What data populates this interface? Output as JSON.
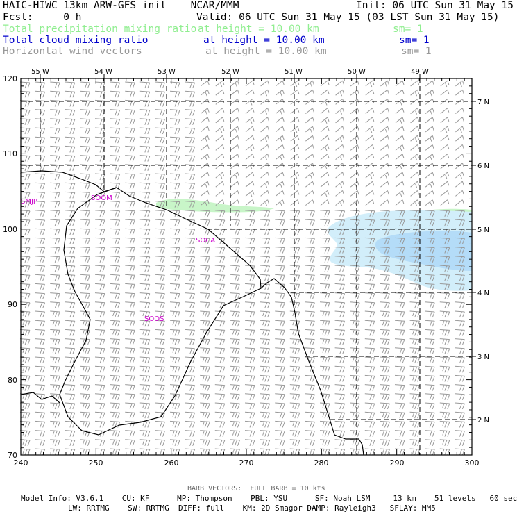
{
  "header": {
    "left_title": "HAIC-HIWC 13km ARW-GFS init    NCAR/MMM",
    "init": "Init: 06 UTC Sun 31 May 15",
    "fcst": "Fcst:     0 h",
    "valid": "Valid: 06 UTC Sun 31 May 15 (03 LST Sun 31 May 15)"
  },
  "fields": [
    {
      "name": "Total precipitation mixing ratio",
      "level": "at height = 10.00 km",
      "sm": "sm= 1",
      "color": "#90ee90"
    },
    {
      "name": "Total cloud mixing ratio",
      "level": "at height = 10.00 km",
      "sm": "sm= 1",
      "color": "#0000cc"
    },
    {
      "name": "Horizontal wind vectors",
      "level": "at height = 10.00 km",
      "sm": "sm= 1",
      "color": "#999999"
    }
  ],
  "axes": {
    "x_ticks": [
      "240",
      "250",
      "260",
      "270",
      "280",
      "290",
      "300"
    ],
    "y_ticks": [
      "70",
      "80",
      "90",
      "100",
      "110",
      "120"
    ],
    "lon_labels": [
      "55 W",
      "54 W",
      "53 W",
      "52 W",
      "51 W",
      "50 W",
      "49 W"
    ],
    "lat_labels": [
      "7 N",
      "6 N",
      "5 N",
      "4 N",
      "3 N",
      "2 N"
    ]
  },
  "stations": [
    "SMJP",
    "SOOM",
    "SOCA",
    "SOOS"
  ],
  "footer": {
    "barb": "BARB VECTORS:  FULL BARB = 10 kts",
    "line1": "Model Info: V3.6.1    CU: KF      MP: Thompson    PBL: YSU      SF: Noah LSM     13 km    51 levels   60 sec",
    "line2": "LW: RRTMG    SW: RRTMG  DIFF: full    KM: 2D Smagor DAMP: Rayleigh3   SFLAY: MM5"
  },
  "colors": {
    "precip": "#c8f5c8",
    "cloud_light": "#d2eefa",
    "cloud_dark": "#b4dcf8",
    "station": "#cc00cc",
    "barb": "#999999"
  }
}
